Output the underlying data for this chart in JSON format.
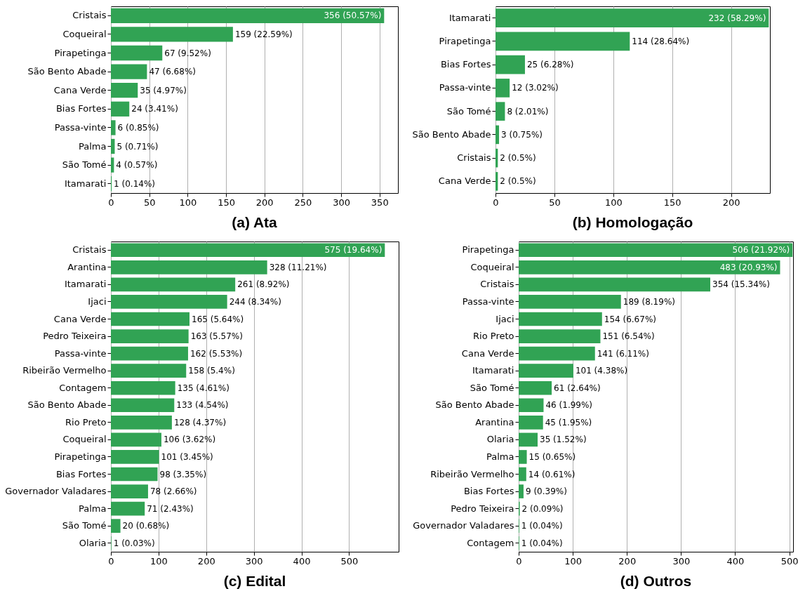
{
  "chart_data": [
    {
      "type": "bar",
      "orientation": "horizontal",
      "title": "(a) Ata",
      "color": "#31a354",
      "grid": "x",
      "xlim": [
        0,
        374
      ],
      "xticks": [
        0,
        50,
        100,
        150,
        200,
        250,
        300,
        350
      ],
      "categories": [
        "Cristais",
        "Coqueiral",
        "Pirapetinga",
        "São Bento Abade",
        "Cana Verde",
        "Bias Fortes",
        "Passa-vinte",
        "Palma",
        "São Tomé",
        "Itamarati"
      ],
      "values": [
        356,
        159,
        67,
        47,
        35,
        24,
        6,
        5,
        4,
        1
      ],
      "value_labels": [
        "356 (50.57%)",
        "159 (22.59%)",
        "67 (9.52%)",
        "47 (6.68%)",
        "35 (4.97%)",
        "24 (3.41%)",
        "6 (0.85%)",
        "5 (0.71%)",
        "4 (0.57%)",
        "1 (0.14%)"
      ]
    },
    {
      "type": "bar",
      "orientation": "horizontal",
      "title": "(b) Homologação",
      "color": "#31a354",
      "grid": "x",
      "xlim": [
        0,
        233
      ],
      "xticks": [
        0,
        50,
        100,
        150,
        200
      ],
      "categories": [
        "Itamarati",
        "Pirapetinga",
        "Bias Fortes",
        "Passa-vinte",
        "São Tomé",
        "São Bento Abade",
        "Cristais",
        "Cana Verde"
      ],
      "values": [
        232,
        114,
        25,
        12,
        8,
        3,
        2,
        2
      ],
      "value_labels": [
        "232 (58.29%)",
        "114 (28.64%)",
        "25 (6.28%)",
        "12 (3.02%)",
        "8 (2.01%)",
        "3 (0.75%)",
        "2 (0.5%)",
        "2 (0.5%)"
      ]
    },
    {
      "type": "bar",
      "orientation": "horizontal",
      "title": "(c) Edital",
      "color": "#31a354",
      "grid": "x",
      "xlim": [
        0,
        604
      ],
      "xticks": [
        0,
        100,
        200,
        300,
        400,
        500
      ],
      "categories": [
        "Cristais",
        "Arantina",
        "Itamarati",
        "Ijaci",
        "Cana Verde",
        "Pedro Teixeira",
        "Passa-vinte",
        "Ribeirão Vermelho",
        "Contagem",
        "São Bento Abade",
        "Rio Preto",
        "Coqueiral",
        "Pirapetinga",
        "Bias Fortes",
        "Governador Valadares",
        "Palma",
        "São Tomé",
        "Olaria"
      ],
      "values": [
        575,
        328,
        261,
        244,
        165,
        163,
        162,
        158,
        135,
        133,
        128,
        106,
        101,
        98,
        78,
        71,
        20,
        1
      ],
      "value_labels": [
        "575 (19.64%)",
        "328 (11.21%)",
        "261 (8.92%)",
        "244 (8.34%)",
        "165 (5.64%)",
        "163 (5.57%)",
        "162 (5.53%)",
        "158 (5.4%)",
        "135 (4.61%)",
        "133 (4.54%)",
        "128 (4.37%)",
        "106 (3.62%)",
        "101 (3.45%)",
        "98 (3.35%)",
        "78 (2.66%)",
        "71 (2.43%)",
        "20 (0.68%)",
        "1 (0.03%)"
      ]
    },
    {
      "type": "bar",
      "orientation": "horizontal",
      "title": "(d) Outros",
      "color": "#31a354",
      "grid": "x",
      "xlim": [
        0,
        507
      ],
      "xticks": [
        0,
        100,
        200,
        300,
        400,
        500
      ],
      "categories": [
        "Pirapetinga",
        "Coqueiral",
        "Cristais",
        "Passa-vinte",
        "Ijaci",
        "Rio Preto",
        "Cana Verde",
        "Itamarati",
        "São Tomé",
        "São Bento Abade",
        "Arantina",
        "Olaria",
        "Palma",
        "Ribeirão Vermelho",
        "Bias Fortes",
        "Pedro Teixeira",
        "Governador Valadares",
        "Contagem"
      ],
      "values": [
        506,
        483,
        354,
        189,
        154,
        151,
        141,
        101,
        61,
        46,
        45,
        35,
        15,
        14,
        9,
        2,
        1,
        1
      ],
      "value_labels": [
        "506 (21.92%)",
        "483 (20.93%)",
        "354 (15.34%)",
        "189 (8.19%)",
        "154 (6.67%)",
        "151 (6.54%)",
        "141 (6.11%)",
        "101 (4.38%)",
        "61 (2.64%)",
        "46 (1.99%)",
        "45 (1.95%)",
        "35 (1.52%)",
        "15 (0.65%)",
        "14 (0.61%)",
        "9 (0.39%)",
        "2 (0.09%)",
        "1 (0.04%)",
        "1 (0.04%)"
      ]
    }
  ]
}
